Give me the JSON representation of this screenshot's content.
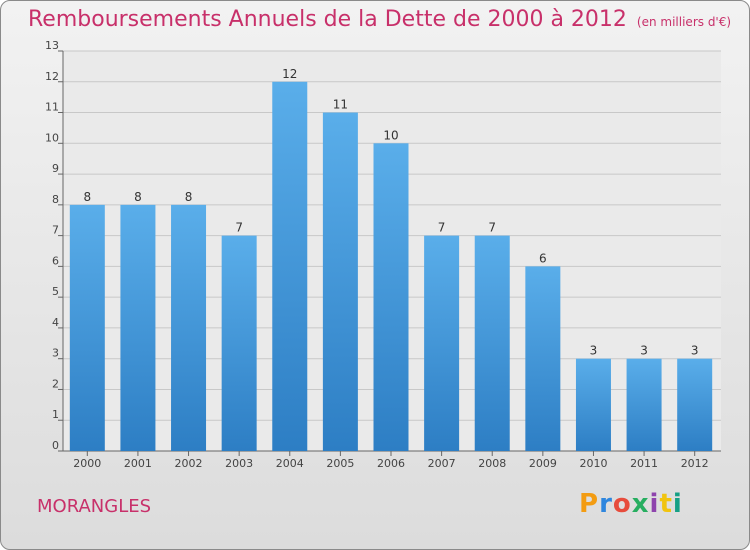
{
  "header": {
    "title": "Remboursements Annuels de la Dette de 2000 à 2012",
    "unit": "(en milliers d'€)"
  },
  "commune": "MORANGLES",
  "logo": {
    "text": "Proxiti"
  },
  "colors": {
    "bar": "#4a9de0",
    "title": "#c8306a"
  },
  "chart_data": {
    "type": "bar",
    "title": "Remboursements Annuels de la Dette de 2000 à 2012",
    "subtitle": "(en milliers d'€)",
    "categories": [
      "2000",
      "2001",
      "2002",
      "2003",
      "2004",
      "2005",
      "2006",
      "2007",
      "2008",
      "2009",
      "2010",
      "2011",
      "2012"
    ],
    "values": [
      8,
      8,
      8,
      7,
      12,
      11,
      10,
      7,
      7,
      6,
      3,
      3,
      3
    ],
    "ylim": [
      0,
      13
    ],
    "yticks": [
      0,
      1,
      2,
      3,
      4,
      5,
      6,
      7,
      8,
      9,
      10,
      11,
      12,
      13
    ],
    "grid": true,
    "legend": "none"
  }
}
